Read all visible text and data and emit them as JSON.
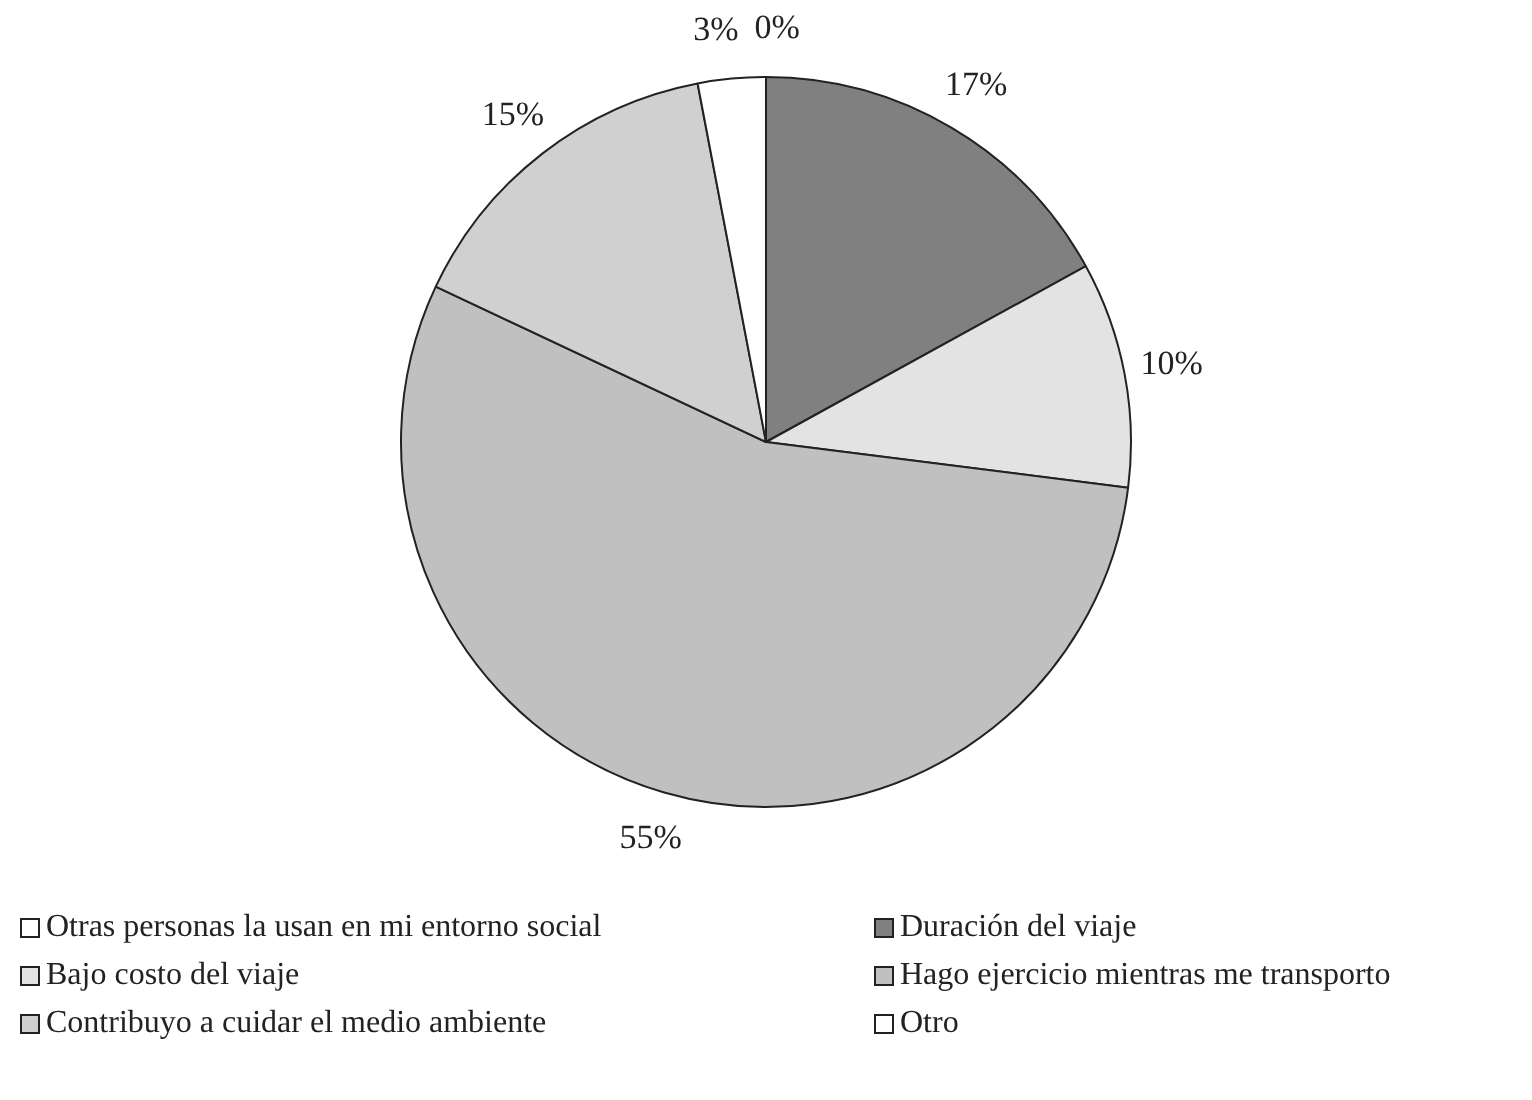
{
  "chart_data": {
    "type": "pie",
    "categories": [
      "Otras personas la usan en mi entorno social",
      "Duración del viaje",
      "Bajo costo del viaje",
      "Hago ejercicio mientras me transporto",
      "Contribuyo a cuidar el medio ambiente",
      "Otro"
    ],
    "values": [
      0,
      17,
      10,
      55,
      15,
      3
    ],
    "colors": [
      "#ffffff",
      "#808080",
      "#e3e3e3",
      "#c0c0c0",
      "#d0d0d0",
      "#ffffff"
    ],
    "value_labels": [
      "0%",
      "17%",
      "10%",
      "55%",
      "15%",
      "3%"
    ],
    "legend": "bottom"
  }
}
